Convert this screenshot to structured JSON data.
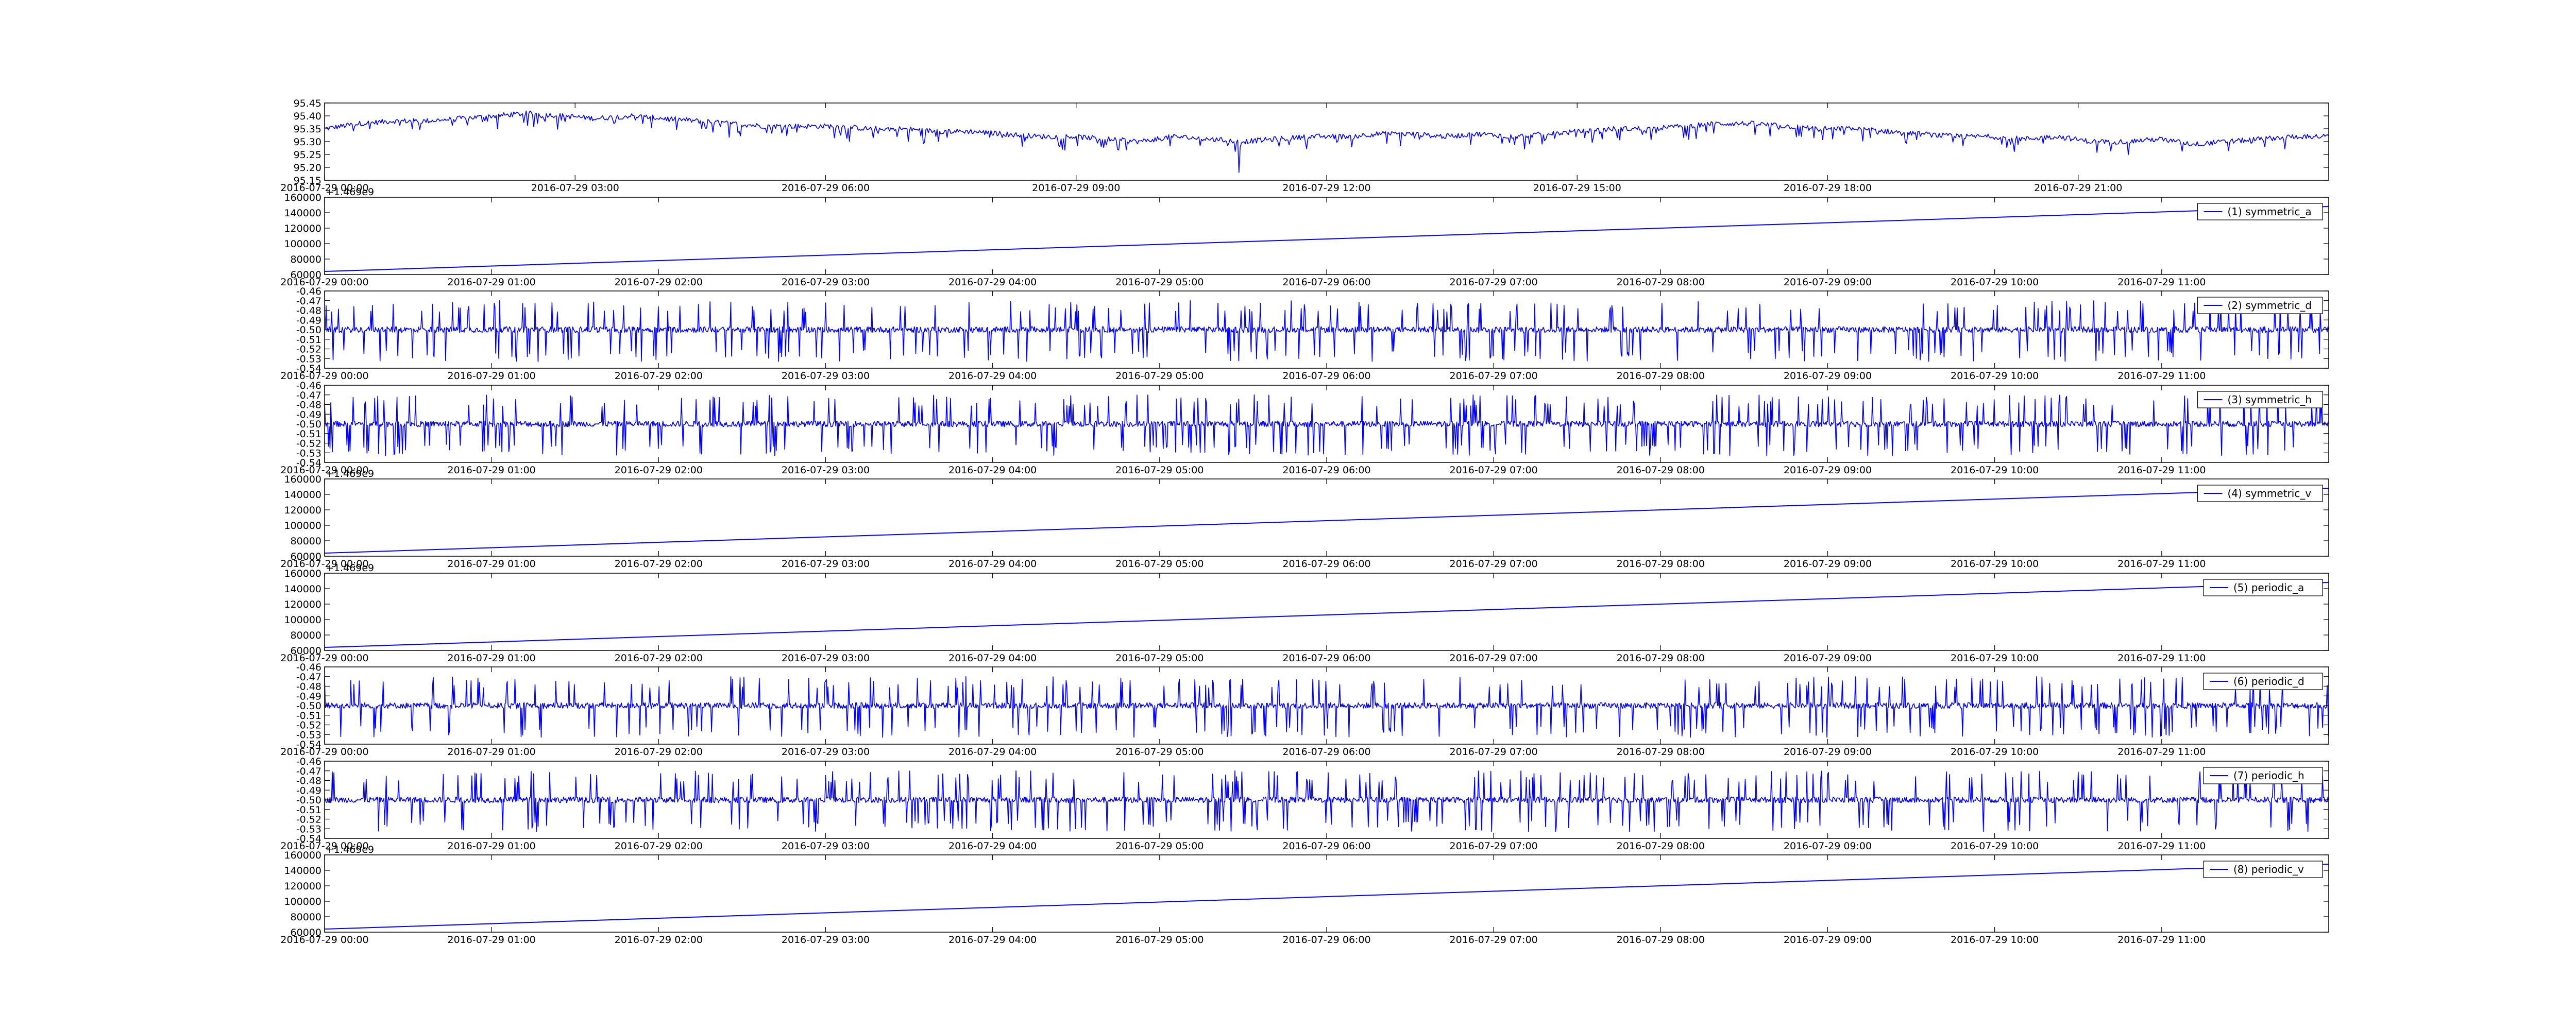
{
  "chart_data": [
    {
      "id": "p0",
      "type": "line",
      "title": "",
      "xlabel": "",
      "ylabel": "",
      "color": "#0000ff",
      "ylim": [
        95.15,
        95.45
      ],
      "yticks": [
        "95.15",
        "95.20",
        "95.25",
        "95.30",
        "95.35",
        "95.40",
        "95.45"
      ],
      "xticks": [
        "2016-07-29 00:00",
        "2016-07-29 03:00",
        "2016-07-29 06:00",
        "2016-07-29 09:00",
        "2016-07-29 12:00",
        "2016-07-29 15:00",
        "2016-07-29 18:00",
        "2016-07-29 21:00"
      ],
      "x_hours": [
        0,
        24
      ],
      "offset_label": "",
      "legend": "",
      "series_values": [
        95.35,
        95.37,
        95.38,
        95.38,
        95.39,
        95.4,
        95.41,
        95.4,
        95.39,
        95.4,
        95.39,
        95.38,
        95.37,
        95.36,
        95.36,
        95.36,
        95.35,
        95.35,
        95.34,
        95.34,
        95.33,
        95.32,
        95.32,
        95.31,
        95.3,
        95.32,
        95.31,
        95.3,
        95.31,
        95.32,
        95.32,
        95.33,
        95.33,
        95.32,
        95.33,
        95.32,
        95.33,
        95.34,
        95.35,
        95.35,
        95.36,
        95.37,
        95.37,
        95.36,
        95.35,
        95.35,
        95.34,
        95.33,
        95.32,
        95.32,
        95.31,
        95.32,
        95.3,
        95.3,
        95.31,
        95.29,
        95.3,
        95.31,
        95.32,
        95.32
      ]
    },
    {
      "id": "p1",
      "type": "line",
      "title": "",
      "xlabel": "",
      "ylabel": "",
      "color": "#0000ff",
      "ylim": [
        60000,
        160000
      ],
      "yticks": [
        "60000",
        "80000",
        "100000",
        "120000",
        "140000",
        "160000"
      ],
      "xticks": [
        "2016-07-29 00:00",
        "2016-07-29 01:00",
        "2016-07-29 02:00",
        "2016-07-29 03:00",
        "2016-07-29 04:00",
        "2016-07-29 05:00",
        "2016-07-29 06:00",
        "2016-07-29 07:00",
        "2016-07-29 08:00",
        "2016-07-29 09:00",
        "2016-07-29 10:00",
        "2016-07-29 11:00"
      ],
      "x_hours": [
        0,
        12
      ],
      "offset_label": "+1.469e9",
      "legend": "(1) symmetric_a",
      "series_start_end": [
        64000,
        148000
      ]
    },
    {
      "id": "p2",
      "type": "line",
      "title": "",
      "xlabel": "",
      "ylabel": "",
      "color": "#0000ff",
      "ylim": [
        -0.54,
        -0.46
      ],
      "yticks": [
        "-0.54",
        "-0.53",
        "-0.52",
        "-0.51",
        "-0.50",
        "-0.49",
        "-0.48",
        "-0.47",
        "-0.46"
      ],
      "xticks": [
        "2016-07-29 00:00",
        "2016-07-29 01:00",
        "2016-07-29 02:00",
        "2016-07-29 03:00",
        "2016-07-29 04:00",
        "2016-07-29 05:00",
        "2016-07-29 06:00",
        "2016-07-29 07:00",
        "2016-07-29 08:00",
        "2016-07-29 09:00",
        "2016-07-29 10:00",
        "2016-07-29 11:00"
      ],
      "x_hours": [
        0,
        12
      ],
      "offset_label": "",
      "legend": "(2) symmetric_d",
      "series_center": -0.5,
      "series_spike_range": [
        -0.533,
        -0.47
      ]
    },
    {
      "id": "p3",
      "type": "line",
      "title": "",
      "xlabel": "",
      "ylabel": "",
      "color": "#0000ff",
      "ylim": [
        -0.54,
        -0.46
      ],
      "yticks": [
        "-0.54",
        "-0.53",
        "-0.52",
        "-0.51",
        "-0.50",
        "-0.49",
        "-0.48",
        "-0.47",
        "-0.46"
      ],
      "xticks": [
        "2016-07-29 00:00",
        "2016-07-29 01:00",
        "2016-07-29 02:00",
        "2016-07-29 03:00",
        "2016-07-29 04:00",
        "2016-07-29 05:00",
        "2016-07-29 06:00",
        "2016-07-29 07:00",
        "2016-07-29 08:00",
        "2016-07-29 09:00",
        "2016-07-29 10:00",
        "2016-07-29 11:00"
      ],
      "x_hours": [
        0,
        12
      ],
      "offset_label": "",
      "legend": "(3) symmetric_h",
      "series_center": -0.5,
      "series_spike_range": [
        -0.533,
        -0.47
      ]
    },
    {
      "id": "p4",
      "type": "line",
      "title": "",
      "xlabel": "",
      "ylabel": "",
      "color": "#0000ff",
      "ylim": [
        60000,
        160000
      ],
      "yticks": [
        "60000",
        "80000",
        "100000",
        "120000",
        "140000",
        "160000"
      ],
      "xticks": [
        "2016-07-29 00:00",
        "2016-07-29 01:00",
        "2016-07-29 02:00",
        "2016-07-29 03:00",
        "2016-07-29 04:00",
        "2016-07-29 05:00",
        "2016-07-29 06:00",
        "2016-07-29 07:00",
        "2016-07-29 08:00",
        "2016-07-29 09:00",
        "2016-07-29 10:00",
        "2016-07-29 11:00"
      ],
      "x_hours": [
        0,
        12
      ],
      "offset_label": "+1.469e9",
      "legend": "(4) symmetric_v",
      "series_start_end": [
        64000,
        148000
      ]
    },
    {
      "id": "p5",
      "type": "line",
      "title": "",
      "xlabel": "",
      "ylabel": "",
      "color": "#0000ff",
      "ylim": [
        60000,
        160000
      ],
      "yticks": [
        "60000",
        "80000",
        "100000",
        "120000",
        "140000",
        "160000"
      ],
      "xticks": [
        "2016-07-29 00:00",
        "2016-07-29 01:00",
        "2016-07-29 02:00",
        "2016-07-29 03:00",
        "2016-07-29 04:00",
        "2016-07-29 05:00",
        "2016-07-29 06:00",
        "2016-07-29 07:00",
        "2016-07-29 08:00",
        "2016-07-29 09:00",
        "2016-07-29 10:00",
        "2016-07-29 11:00"
      ],
      "x_hours": [
        0,
        12
      ],
      "offset_label": "+1.469e9",
      "legend": "(5) periodic_a",
      "series_start_end": [
        64000,
        148000
      ]
    },
    {
      "id": "p6",
      "type": "line",
      "title": "",
      "xlabel": "",
      "ylabel": "",
      "color": "#0000ff",
      "ylim": [
        -0.54,
        -0.46
      ],
      "yticks": [
        "-0.54",
        "-0.53",
        "-0.52",
        "-0.51",
        "-0.50",
        "-0.49",
        "-0.48",
        "-0.47",
        "-0.46"
      ],
      "xticks": [
        "2016-07-29 00:00",
        "2016-07-29 01:00",
        "2016-07-29 02:00",
        "2016-07-29 03:00",
        "2016-07-29 04:00",
        "2016-07-29 05:00",
        "2016-07-29 06:00",
        "2016-07-29 07:00",
        "2016-07-29 08:00",
        "2016-07-29 09:00",
        "2016-07-29 10:00",
        "2016-07-29 11:00"
      ],
      "x_hours": [
        0,
        12
      ],
      "offset_label": "",
      "legend": "(6) periodic_d",
      "series_center": -0.5,
      "series_spike_range": [
        -0.533,
        -0.47
      ]
    },
    {
      "id": "p7",
      "type": "line",
      "title": "",
      "xlabel": "",
      "ylabel": "",
      "color": "#0000ff",
      "ylim": [
        -0.54,
        -0.46
      ],
      "yticks": [
        "-0.54",
        "-0.53",
        "-0.52",
        "-0.51",
        "-0.50",
        "-0.49",
        "-0.48",
        "-0.47",
        "-0.46"
      ],
      "xticks": [
        "2016-07-29 00:00",
        "2016-07-29 01:00",
        "2016-07-29 02:00",
        "2016-07-29 03:00",
        "2016-07-29 04:00",
        "2016-07-29 05:00",
        "2016-07-29 06:00",
        "2016-07-29 07:00",
        "2016-07-29 08:00",
        "2016-07-29 09:00",
        "2016-07-29 10:00",
        "2016-07-29 11:00"
      ],
      "x_hours": [
        0,
        12
      ],
      "offset_label": "",
      "legend": "(7) periodic_h",
      "series_center": -0.5,
      "series_spike_range": [
        -0.533,
        -0.47
      ]
    },
    {
      "id": "p8",
      "type": "line",
      "title": "",
      "xlabel": "",
      "ylabel": "",
      "color": "#0000ff",
      "ylim": [
        60000,
        160000
      ],
      "yticks": [
        "60000",
        "80000",
        "100000",
        "120000",
        "140000",
        "160000"
      ],
      "xticks": [
        "2016-07-29 00:00",
        "2016-07-29 01:00",
        "2016-07-29 02:00",
        "2016-07-29 03:00",
        "2016-07-29 04:00",
        "2016-07-29 05:00",
        "2016-07-29 06:00",
        "2016-07-29 07:00",
        "2016-07-29 08:00",
        "2016-07-29 09:00",
        "2016-07-29 10:00",
        "2016-07-29 11:00"
      ],
      "x_hours": [
        0,
        12
      ],
      "offset_label": "+1.469e9",
      "legend": "(8) periodic_v",
      "series_start_end": [
        64000,
        148000
      ]
    }
  ]
}
